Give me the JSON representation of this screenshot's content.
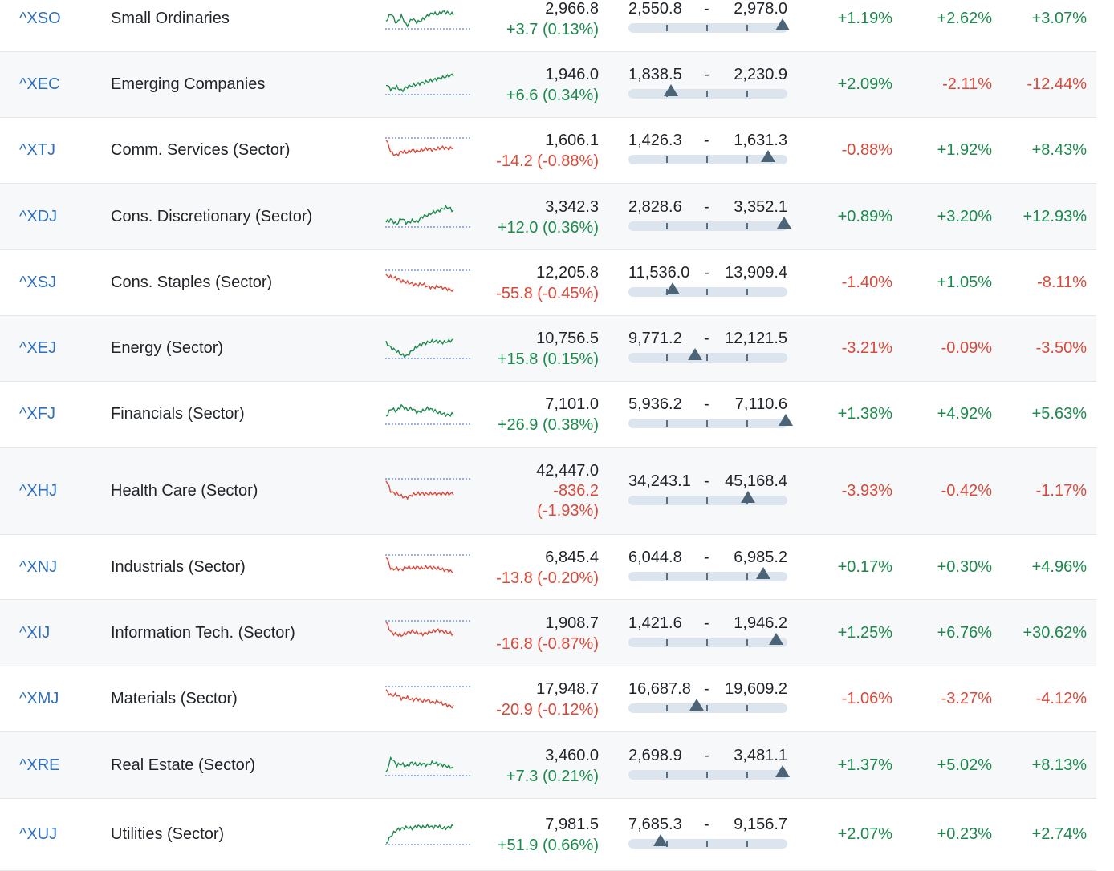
{
  "colors": {
    "positive": "#1c8a4c",
    "negative": "#d9493a",
    "link": "#2f6fb8",
    "range_bar": "#dce5ee",
    "range_marker": "#4c6478"
  },
  "rows": [
    {
      "ticker": "^XSO",
      "name": "Small Ordinaries",
      "price": "2,966.8",
      "change": "+3.7 (0.13%)",
      "low": "2,550.8",
      "high": "2,978.0",
      "range_position": 0.97,
      "p1": "+1.19%",
      "p2": "+2.62%",
      "p3": "+3.07%"
    },
    {
      "ticker": "^XEC",
      "name": "Emerging Companies",
      "price": "1,946.0",
      "change": "+6.6 (0.34%)",
      "low": "1,838.5",
      "high": "2,230.9",
      "range_position": 0.27,
      "p1": "+2.09%",
      "p2": "-2.11%",
      "p3": "-12.44%"
    },
    {
      "ticker": "^XTJ",
      "name": "Comm. Services (Sector)",
      "price": "1,606.1",
      "change": "-14.2 (-0.88%)",
      "low": "1,426.3",
      "high": "1,631.3",
      "range_position": 0.88,
      "p1": "-0.88%",
      "p2": "+1.92%",
      "p3": "+8.43%"
    },
    {
      "ticker": "^XDJ",
      "name": "Cons. Discretionary (Sector)",
      "price": "3,342.3",
      "change": "+12.0 (0.36%)",
      "low": "2,828.6",
      "high": "3,352.1",
      "range_position": 0.98,
      "p1": "+0.89%",
      "p2": "+3.20%",
      "p3": "+12.93%"
    },
    {
      "ticker": "^XSJ",
      "name": "Cons. Staples (Sector)",
      "price": "12,205.8",
      "change": "-55.8 (-0.45%)",
      "low": "11,536.0",
      "high": "13,909.4",
      "range_position": 0.28,
      "p1": "-1.40%",
      "p2": "+1.05%",
      "p3": "-8.11%"
    },
    {
      "ticker": "^XEJ",
      "name": "Energy (Sector)",
      "price": "10,756.5",
      "change": "+15.8 (0.15%)",
      "low": "9,771.2",
      "high": "12,121.5",
      "range_position": 0.42,
      "p1": "-3.21%",
      "p2": "-0.09%",
      "p3": "-3.50%"
    },
    {
      "ticker": "^XFJ",
      "name": "Financials (Sector)",
      "price": "7,101.0",
      "change": "+26.9 (0.38%)",
      "low": "5,936.2",
      "high": "7,110.6",
      "range_position": 0.99,
      "p1": "+1.38%",
      "p2": "+4.92%",
      "p3": "+5.63%"
    },
    {
      "ticker": "^XHJ",
      "name": "Health Care (Sector)",
      "price": "42,447.0",
      "change_line1": "-836.2",
      "change_line2": "(-1.93%)",
      "low": "34,243.1",
      "high": "45,168.4",
      "range_position": 0.75,
      "p1": "-3.93%",
      "p2": "-0.42%",
      "p3": "-1.17%"
    },
    {
      "ticker": "^XNJ",
      "name": "Industrials (Sector)",
      "price": "6,845.4",
      "change": "-13.8 (-0.20%)",
      "low": "6,044.8",
      "high": "6,985.2",
      "range_position": 0.85,
      "p1": "+0.17%",
      "p2": "+0.30%",
      "p3": "+4.96%"
    },
    {
      "ticker": "^XIJ",
      "name": "Information Tech. (Sector)",
      "price": "1,908.7",
      "change": "-16.8 (-0.87%)",
      "low": "1,421.6",
      "high": "1,946.2",
      "range_position": 0.93,
      "p1": "+1.25%",
      "p2": "+6.76%",
      "p3": "+30.62%"
    },
    {
      "ticker": "^XMJ",
      "name": "Materials (Sector)",
      "price": "17,948.7",
      "change": "-20.9 (-0.12%)",
      "low": "16,687.8",
      "high": "19,609.2",
      "range_position": 0.43,
      "p1": "-1.06%",
      "p2": "-3.27%",
      "p3": "-4.12%"
    },
    {
      "ticker": "^XRE",
      "name": "Real Estate (Sector)",
      "price": "3,460.0",
      "change": "+7.3 (0.21%)",
      "low": "2,698.9",
      "high": "3,481.1",
      "range_position": 0.97,
      "p1": "+1.37%",
      "p2": "+5.02%",
      "p3": "+8.13%"
    },
    {
      "ticker": "^XUJ",
      "name": "Utilities (Sector)",
      "price": "7,981.5",
      "change": "+51.9 (0.66%)",
      "low": "7,685.3",
      "high": "9,156.7",
      "range_position": 0.2,
      "p1": "+2.07%",
      "p2": "+0.23%",
      "p3": "+2.74%"
    }
  ]
}
